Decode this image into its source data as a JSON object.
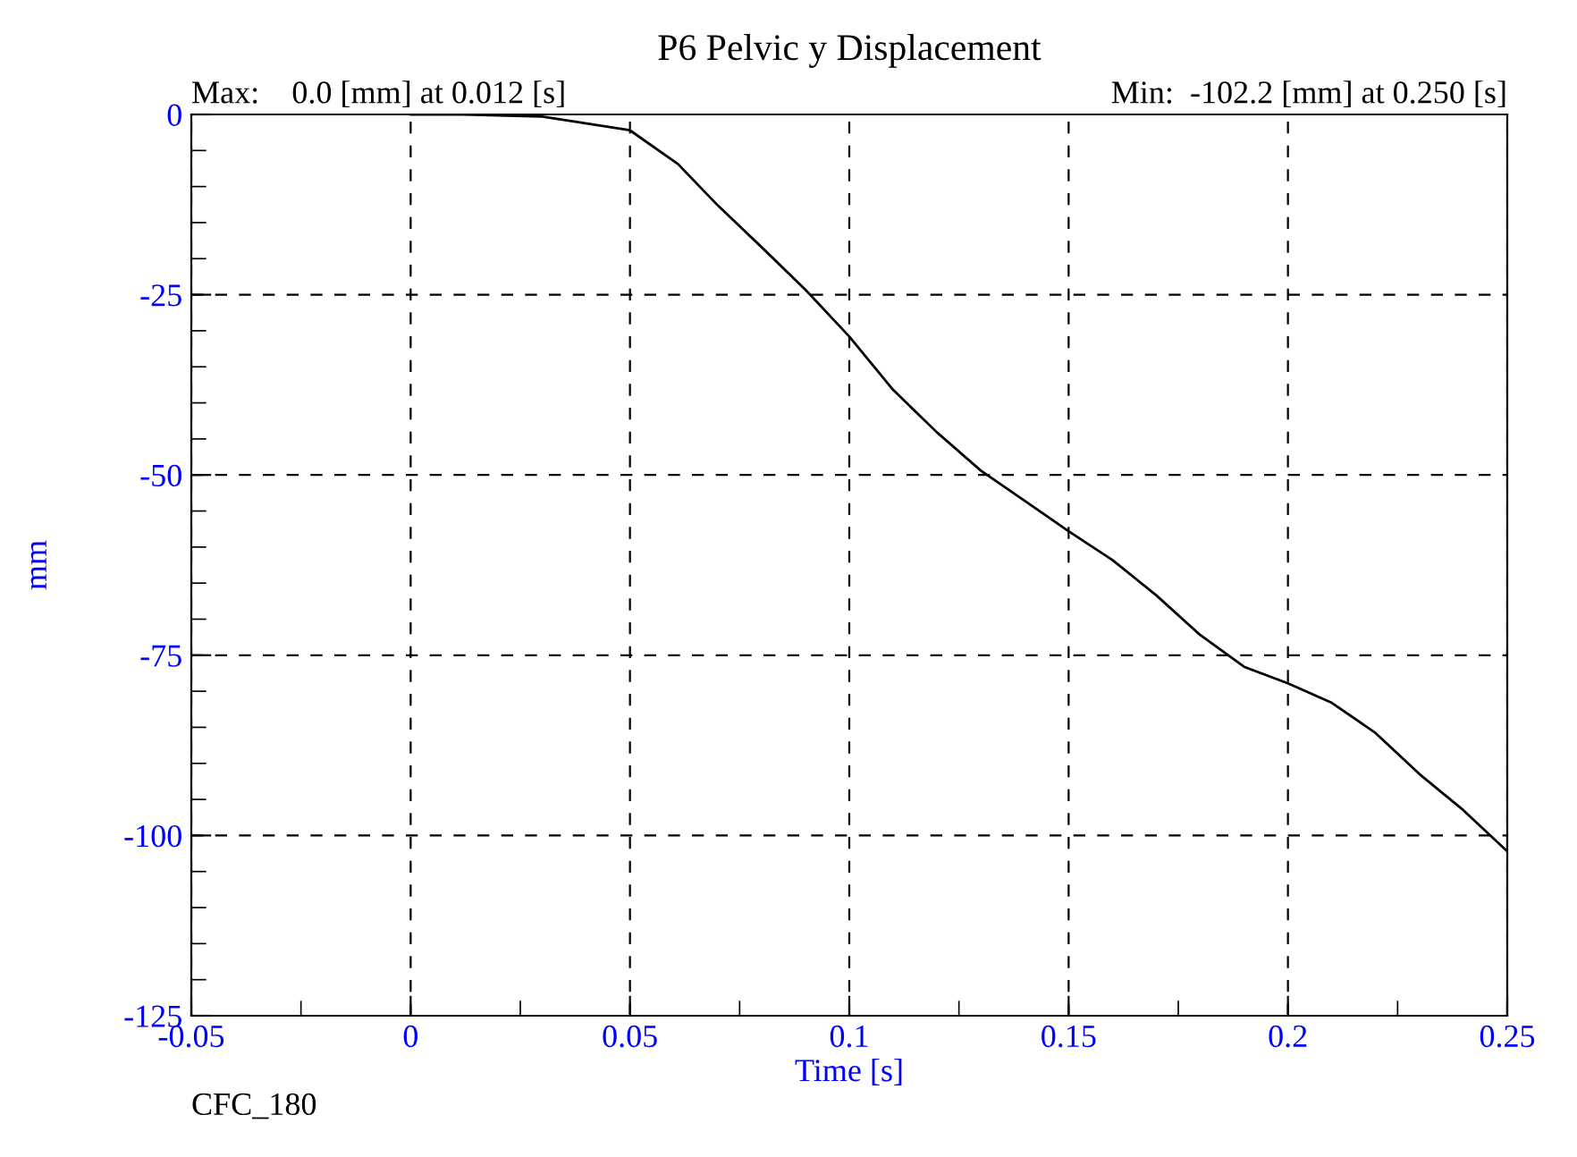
{
  "chart_data": {
    "type": "line",
    "title": "P6 Pelvic y Displacement",
    "xlabel": "Time [s]",
    "ylabel": "mm",
    "annotations": [
      "Max:    0.0 [mm] at 0.012 [s]",
      "Min:  -102.2 [mm] at 0.250 [s]",
      "CFC_180"
    ],
    "x": [
      0.0,
      0.012,
      0.03,
      0.05,
      0.061,
      0.07,
      0.08,
      0.09,
      0.1,
      0.11,
      0.12,
      0.13,
      0.14,
      0.15,
      0.16,
      0.17,
      0.18,
      0.19,
      0.2,
      0.21,
      0.22,
      0.23,
      0.24,
      0.25
    ],
    "series": [
      {
        "color": "#000000",
        "values": [
          0,
          0,
          -0.3,
          -2.2,
          -6.9,
          -12.6,
          -18.4,
          -24.3,
          -30.8,
          -38.2,
          -44.1,
          -49.4,
          -53.6,
          -57.8,
          -61.8,
          -66.7,
          -72.2,
          -76.6,
          -78.9,
          -81.6,
          -85.8,
          -91.5,
          -96.5,
          -102.2
        ]
      }
    ],
    "xlim": [
      -0.05,
      0.25
    ],
    "xticks": [
      -0.05,
      0,
      0.05,
      0.1,
      0.15,
      0.2,
      0.25
    ],
    "ylim": [
      -125,
      0
    ],
    "yticks": [
      -125,
      -100,
      -75,
      -50,
      -25,
      0
    ],
    "grid": true,
    "marker": "none",
    "line_style": "solid"
  }
}
